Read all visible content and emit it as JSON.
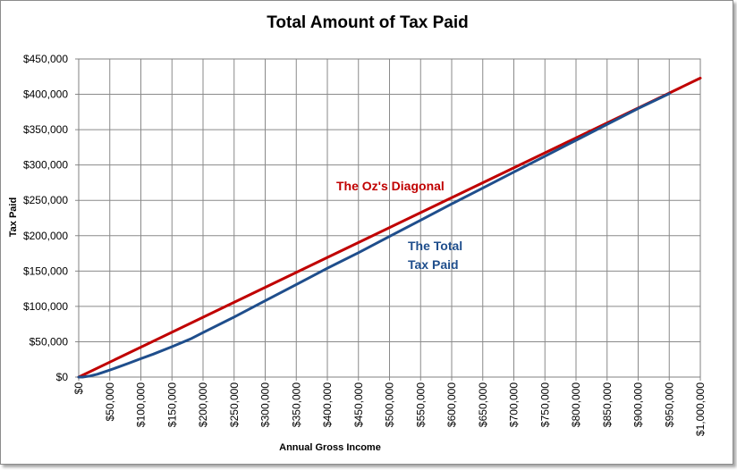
{
  "chart_data": {
    "type": "line",
    "title": "Total Amount of Tax Paid",
    "xlabel": "Annual Gross Income",
    "ylabel": "Tax Paid",
    "xlim": [
      0,
      1000000
    ],
    "ylim": [
      0,
      450000
    ],
    "grid": true,
    "x_tick_labels": [
      "$0",
      "$50,000",
      "$100,000",
      "$150,000",
      "$200,000",
      "$250,000",
      "$300,000",
      "$350,000",
      "$400,000",
      "$450,000",
      "$500,000",
      "$550,000",
      "$600,000",
      "$650,000",
      "$700,000",
      "$750,000",
      "$800,000",
      "$850,000",
      "$900,000",
      "$950,000",
      "$1,000,000"
    ],
    "y_tick_labels": [
      "$0",
      "$50,000",
      "$100,000",
      "$150,000",
      "$200,000",
      "$250,000",
      "$300,000",
      "$350,000",
      "$400,000",
      "$450,000"
    ],
    "x_ticks": [
      0,
      50000,
      100000,
      150000,
      200000,
      250000,
      300000,
      350000,
      400000,
      450000,
      500000,
      550000,
      600000,
      650000,
      700000,
      750000,
      800000,
      850000,
      900000,
      950000,
      1000000
    ],
    "y_ticks": [
      0,
      50000,
      100000,
      150000,
      200000,
      250000,
      300000,
      350000,
      400000,
      450000
    ],
    "series": [
      {
        "color": "#c00000",
        "x": [
          0,
          1000000
        ],
        "y": [
          0,
          423000
        ]
      },
      {
        "color": "#1f4e8c",
        "x": [
          0,
          6000,
          18000,
          30000,
          45000,
          60000,
          80000,
          100000,
          120000,
          150000,
          180000,
          200000,
          250000,
          300000,
          350000,
          400000,
          450000,
          500000,
          550000,
          600000,
          650000,
          700000,
          750000,
          800000,
          850000,
          900000,
          950000
        ],
        "y": [
          0,
          0,
          1500,
          4000,
          8500,
          13000,
          19500,
          26000,
          32500,
          43000,
          54000,
          63000,
          85000,
          108000,
          131000,
          154000,
          176000,
          199000,
          222000,
          245000,
          267500,
          290000,
          312500,
          335000,
          357500,
          380000,
          401000
        ]
      }
    ],
    "annotations": [
      {
        "text": "The Oz's Diagonal",
        "color": "#c00000"
      },
      {
        "text": "The Total",
        "color": "#1f4e8c"
      },
      {
        "text": "Tax Paid",
        "color": "#1f4e8c"
      }
    ]
  }
}
